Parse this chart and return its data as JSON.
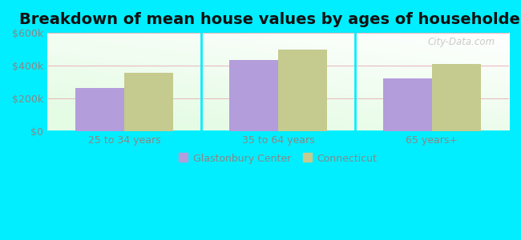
{
  "title": "Breakdown of mean house values by ages of householders",
  "categories": [
    "25 to 34 years",
    "35 to 64 years",
    "65 years+"
  ],
  "glastonbury_values": [
    265000,
    435000,
    325000
  ],
  "connecticut_values": [
    355000,
    500000,
    410000
  ],
  "glastonbury_color": "#b39ddb",
  "connecticut_color": "#c5ca8e",
  "ylim": [
    0,
    600000
  ],
  "yticks": [
    0,
    200000,
    400000,
    600000
  ],
  "ytick_labels": [
    "$0",
    "$200k",
    "$400k",
    "$600k"
  ],
  "legend_glastonbury": "Glastonbury Center",
  "legend_connecticut": "Connecticut",
  "background_outer": "#00eeff",
  "bar_width": 0.32,
  "title_fontsize": 14,
  "axis_fontsize": 9,
  "tick_color": "#888888",
  "watermark": "City-Data.com"
}
